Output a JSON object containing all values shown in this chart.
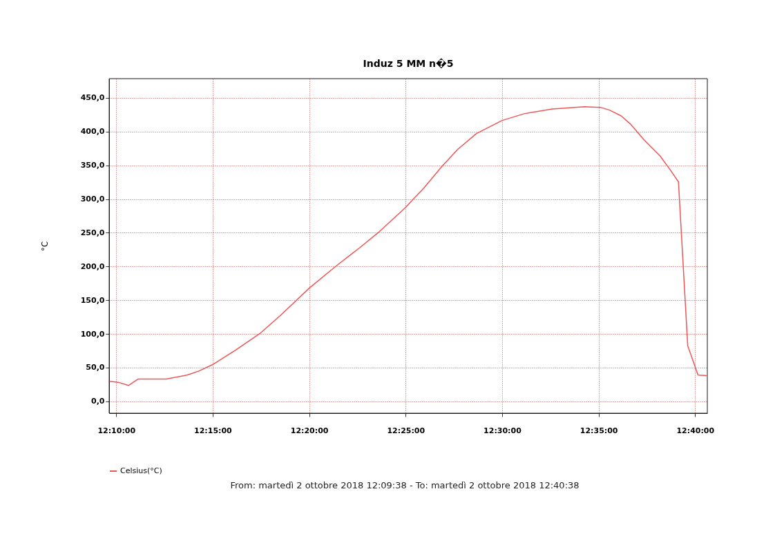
{
  "chart_data": {
    "type": "line",
    "title": "Induz 5 MM n�5",
    "ylabel": "°C",
    "x": [
      12.1607,
      12.1683,
      12.1772,
      12.1857,
      12.21,
      12.2278,
      12.2377,
      12.25,
      12.2695,
      12.2913,
      12.3092,
      12.3333,
      12.3567,
      12.3767,
      12.3925,
      12.4163,
      12.4242,
      12.4322,
      12.448,
      12.4618,
      12.4778,
      12.5,
      12.5195,
      12.5433,
      12.571,
      12.585,
      12.5928,
      12.6028,
      12.6107,
      12.6227,
      12.6365,
      12.6445,
      12.6523,
      12.6603,
      12.6692,
      12.6767
    ],
    "series": [
      {
        "name": "Celsius(°C)",
        "color": "#ee5555",
        "values": [
          29.7,
          28.3,
          23.5,
          33.1,
          33.1,
          38.9,
          44.7,
          54.5,
          75.7,
          101.3,
          128.5,
          167.7,
          200.8,
          227.4,
          249.5,
          287.0,
          301.7,
          316.0,
          348.4,
          374.0,
          397.2,
          416.6,
          426.8,
          433.6,
          437.0,
          436.0,
          431.9,
          423.4,
          411.5,
          387.6,
          363.8,
          345.0,
          325.6,
          82.5,
          38.9,
          38.2
        ]
      }
    ],
    "xlim": [
      12.16056,
      12.67722
    ],
    "xticks": [
      {
        "value": 12.16667,
        "label": "12:10:00"
      },
      {
        "value": 12.25,
        "label": "12:15:00"
      },
      {
        "value": 12.33333,
        "label": "12:20:00"
      },
      {
        "value": 12.41667,
        "label": "12:25:00"
      },
      {
        "value": 12.5,
        "label": "12:30:00"
      },
      {
        "value": 12.58333,
        "label": "12:35:00"
      },
      {
        "value": 12.66667,
        "label": "12:40:00"
      }
    ],
    "ylim": [
      -17.6,
      478.6
    ],
    "yticks": [
      {
        "value": 0,
        "label": "0,0"
      },
      {
        "value": 50,
        "label": "50,0"
      },
      {
        "value": 100,
        "label": "100,0"
      },
      {
        "value": 150,
        "label": "150,0"
      },
      {
        "value": 200,
        "label": "200,0"
      },
      {
        "value": 250,
        "label": "250,0"
      },
      {
        "value": 300,
        "label": "300,0"
      },
      {
        "value": 350,
        "label": "350,0"
      },
      {
        "value": 400,
        "label": "400,0"
      },
      {
        "value": 450,
        "label": "450,0"
      }
    ],
    "grid": true,
    "legend": "bottom",
    "marker": "none",
    "line_style": "solid",
    "annotations": [
      "From: martedì 2 ottobre 2018 12:09:38  -  To: martedì 2 ottobre 2018 12:40:38"
    ]
  }
}
